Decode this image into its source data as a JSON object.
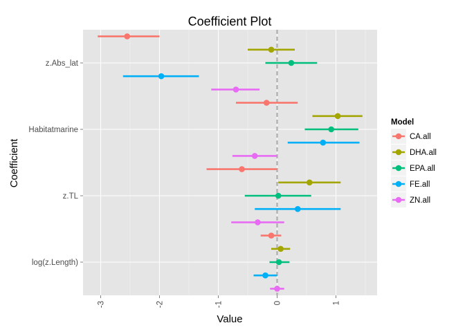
{
  "chart_data": {
    "type": "scatter",
    "subtype": "coefficient-plot-with-intervals",
    "title": "Coefficient Plot",
    "xlabel": "Value",
    "ylabel": "Coefficient",
    "xlim": [
      -3.3,
      1.7
    ],
    "x_ticks": [
      "-3",
      "-2",
      "-1",
      "0",
      "1"
    ],
    "x_tick_values": [
      -3,
      -2,
      -1,
      0,
      1
    ],
    "categories": [
      "log(z.Length)",
      "z.TL",
      "Habitatmarine",
      "z.Abs_lat"
    ],
    "reference_line_x": 0,
    "legend_title": "Model",
    "legend_position": "right",
    "grid": true,
    "series": [
      {
        "name": "CA.all",
        "color": "#F8766D",
        "points": [
          {
            "term": "log(z.Length)",
            "estimate": -0.1,
            "low": -0.28,
            "high": 0.07
          },
          {
            "term": "z.TL",
            "estimate": -0.6,
            "low": -1.2,
            "high": 0.0
          },
          {
            "term": "Habitatmarine",
            "estimate": -0.18,
            "low": -0.7,
            "high": 0.35
          },
          {
            "term": "z.Abs_lat",
            "estimate": -2.55,
            "low": -3.05,
            "high": -2.0
          }
        ]
      },
      {
        "name": "DHA.all",
        "color": "#A3A500",
        "points": [
          {
            "term": "log(z.Length)",
            "estimate": 0.06,
            "low": -0.1,
            "high": 0.22
          },
          {
            "term": "z.TL",
            "estimate": 0.55,
            "low": 0.02,
            "high": 1.08
          },
          {
            "term": "Habitatmarine",
            "estimate": 1.03,
            "low": 0.6,
            "high": 1.45
          },
          {
            "term": "z.Abs_lat",
            "estimate": -0.1,
            "low": -0.5,
            "high": 0.3
          }
        ]
      },
      {
        "name": "EPA.all",
        "color": "#00BF7D",
        "points": [
          {
            "term": "log(z.Length)",
            "estimate": 0.03,
            "low": -0.13,
            "high": 0.21
          },
          {
            "term": "z.TL",
            "estimate": 0.02,
            "low": -0.55,
            "high": 0.58
          },
          {
            "term": "Habitatmarine",
            "estimate": 0.92,
            "low": 0.47,
            "high": 1.38
          },
          {
            "term": "z.Abs_lat",
            "estimate": 0.24,
            "low": -0.2,
            "high": 0.68
          }
        ]
      },
      {
        "name": "FE.all",
        "color": "#00B0F6",
        "points": [
          {
            "term": "log(z.Length)",
            "estimate": -0.2,
            "low": -0.4,
            "high": 0.0
          },
          {
            "term": "z.TL",
            "estimate": 0.35,
            "low": -0.38,
            "high": 1.08
          },
          {
            "term": "Habitatmarine",
            "estimate": 0.78,
            "low": 0.18,
            "high": 1.4
          },
          {
            "term": "z.Abs_lat",
            "estimate": -1.97,
            "low": -2.62,
            "high": -1.33
          }
        ]
      },
      {
        "name": "ZN.all",
        "color": "#E76BF3",
        "points": [
          {
            "term": "log(z.Length)",
            "estimate": 0.0,
            "low": -0.12,
            "high": 0.12
          },
          {
            "term": "z.TL",
            "estimate": -0.33,
            "low": -0.78,
            "high": 0.12
          },
          {
            "term": "Habitatmarine",
            "estimate": -0.38,
            "low": -0.76,
            "high": 0.0
          },
          {
            "term": "z.Abs_lat",
            "estimate": -0.7,
            "low": -1.12,
            "high": -0.3
          }
        ]
      }
    ]
  }
}
